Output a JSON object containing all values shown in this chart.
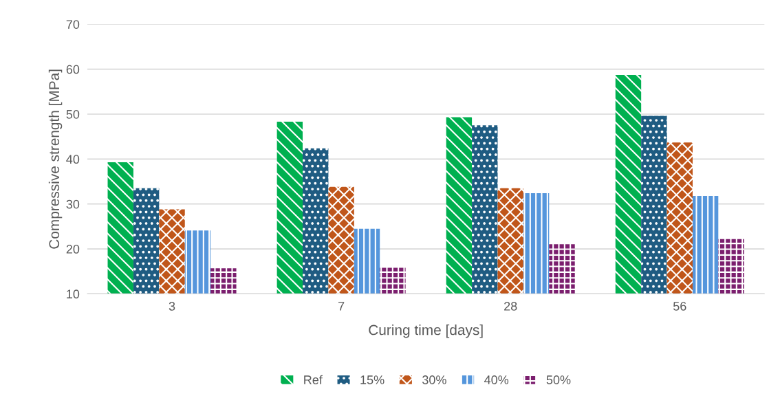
{
  "chart_data": {
    "type": "bar",
    "xlabel": "Curing time [days]",
    "ylabel": "Compressive strength [MPa]",
    "categories": [
      "3",
      "7",
      "28",
      "56"
    ],
    "series": [
      {
        "name": "Ref",
        "color": "#00b050",
        "values": [
          39.3,
          48.3,
          49.3,
          58.7
        ]
      },
      {
        "name": "15%",
        "color": "#1f5c82",
        "values": [
          33.5,
          42.4,
          47.5,
          49.6
        ]
      },
      {
        "name": "30%",
        "color": "#c0561a",
        "values": [
          28.8,
          33.8,
          33.5,
          43.7
        ]
      },
      {
        "name": "40%",
        "color": "#5596dc",
        "values": [
          24.1,
          24.5,
          32.4,
          31.8
        ]
      },
      {
        "name": "50%",
        "color": "#7b1e6e",
        "values": [
          15.7,
          15.8,
          21.4,
          22.2
        ]
      }
    ],
    "ylim": [
      10,
      70
    ],
    "yticks": [
      10,
      20,
      30,
      40,
      50,
      60,
      70
    ],
    "grid": "y",
    "legend": "bottom"
  }
}
